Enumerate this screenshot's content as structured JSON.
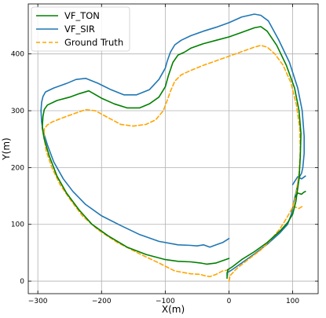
{
  "chart_data": {
    "type": "line",
    "title": "",
    "xlabel": "X(m)",
    "ylabel": "Y(m)",
    "xlim": [
      -315,
      140
    ],
    "ylim": [
      -22,
      488
    ],
    "xticks": [
      -300,
      -200,
      -100,
      0,
      100
    ],
    "yticks": [
      0,
      100,
      200,
      300,
      400
    ],
    "xtick_labels": [
      "−300",
      "−200",
      "−100",
      "0",
      "100"
    ],
    "ytick_labels": [
      "0",
      "100",
      "200",
      "300",
      "400"
    ],
    "grid": true,
    "legend_position": "top-left",
    "series": [
      {
        "name": "VF_TON",
        "color": "#008000",
        "style": "solid",
        "points": [
          [
            -3,
            5
          ],
          [
            -2,
            20
          ],
          [
            5,
            25
          ],
          [
            20,
            38
          ],
          [
            40,
            52
          ],
          [
            60,
            68
          ],
          [
            80,
            88
          ],
          [
            92,
            103
          ],
          [
            100,
            118
          ],
          [
            105,
            140
          ],
          [
            110,
            180
          ],
          [
            112,
            220
          ],
          [
            113,
            260
          ],
          [
            110,
            300
          ],
          [
            103,
            340
          ],
          [
            90,
            380
          ],
          [
            75,
            415
          ],
          [
            60,
            440
          ],
          [
            50,
            448
          ],
          [
            40,
            446
          ],
          [
            20,
            438
          ],
          [
            0,
            430
          ],
          [
            -20,
            424
          ],
          [
            -40,
            418
          ],
          [
            -60,
            410
          ],
          [
            -70,
            403
          ],
          [
            -80,
            398
          ],
          [
            -88,
            385
          ],
          [
            -95,
            362
          ],
          [
            -100,
            342
          ],
          [
            -110,
            324
          ],
          [
            -125,
            312
          ],
          [
            -140,
            305
          ],
          [
            -160,
            305
          ],
          [
            -180,
            312
          ],
          [
            -200,
            322
          ],
          [
            -220,
            335
          ],
          [
            -235,
            330
          ],
          [
            -250,
            324
          ],
          [
            -270,
            318
          ],
          [
            -285,
            310
          ],
          [
            -290,
            302
          ],
          [
            -292,
            290
          ],
          [
            -293,
            270
          ],
          [
            -290,
            250
          ],
          [
            -282,
            220
          ],
          [
            -270,
            185
          ],
          [
            -255,
            155
          ],
          [
            -235,
            125
          ],
          [
            -215,
            100
          ],
          [
            -190,
            80
          ],
          [
            -160,
            60
          ],
          [
            -130,
            47
          ],
          [
            -100,
            38
          ],
          [
            -80,
            35
          ],
          [
            -60,
            34
          ],
          [
            -45,
            32
          ],
          [
            -35,
            30
          ],
          [
            -20,
            32
          ],
          [
            0,
            40
          ]
        ]
      },
      {
        "name": "VF_TON",
        "color": "#008000",
        "style": "solid",
        "points": [
          [
            104,
            148
          ],
          [
            108,
            155
          ],
          [
            114,
            153
          ],
          [
            117,
            156
          ],
          [
            120,
            158
          ]
        ]
      },
      {
        "name": "VF_SIR",
        "color": "#1f77b4",
        "style": "solid",
        "points": [
          [
            -3,
            10
          ],
          [
            -3,
            15
          ],
          [
            2,
            18
          ],
          [
            20,
            32
          ],
          [
            40,
            48
          ],
          [
            60,
            65
          ],
          [
            80,
            85
          ],
          [
            92,
            100
          ],
          [
            98,
            118
          ],
          [
            102,
            140
          ],
          [
            106,
            160
          ],
          [
            110,
            182
          ],
          [
            114,
            190
          ],
          [
            116,
            200
          ],
          [
            118,
            225
          ],
          [
            118,
            255
          ],
          [
            115,
            300
          ],
          [
            108,
            340
          ],
          [
            95,
            385
          ],
          [
            78,
            425
          ],
          [
            62,
            458
          ],
          [
            50,
            468
          ],
          [
            40,
            470
          ],
          [
            20,
            465
          ],
          [
            0,
            455
          ],
          [
            -20,
            447
          ],
          [
            -40,
            440
          ],
          [
            -60,
            432
          ],
          [
            -75,
            424
          ],
          [
            -85,
            416
          ],
          [
            -92,
            403
          ],
          [
            -97,
            387
          ],
          [
            -100,
            375
          ],
          [
            -110,
            355
          ],
          [
            -125,
            337
          ],
          [
            -145,
            328
          ],
          [
            -165,
            328
          ],
          [
            -185,
            337
          ],
          [
            -205,
            348
          ],
          [
            -225,
            357
          ],
          [
            -240,
            355
          ],
          [
            -255,
            348
          ],
          [
            -275,
            340
          ],
          [
            -288,
            333
          ],
          [
            -292,
            325
          ],
          [
            -294,
            315
          ],
          [
            -295,
            300
          ],
          [
            -294,
            280
          ],
          [
            -292,
            265
          ],
          [
            -285,
            240
          ],
          [
            -275,
            210
          ],
          [
            -260,
            180
          ],
          [
            -245,
            158
          ],
          [
            -225,
            135
          ],
          [
            -200,
            115
          ],
          [
            -170,
            98
          ],
          [
            -140,
            82
          ],
          [
            -110,
            70
          ],
          [
            -80,
            64
          ],
          [
            -60,
            63
          ],
          [
            -50,
            62
          ],
          [
            -40,
            64
          ],
          [
            -30,
            60
          ],
          [
            -20,
            64
          ],
          [
            -10,
            68
          ],
          [
            0,
            75
          ]
        ]
      },
      {
        "name": "VF_SIR",
        "color": "#1f77b4",
        "style": "solid",
        "points": [
          [
            100,
            170
          ],
          [
            108,
            184
          ],
          [
            114,
            180
          ],
          [
            120,
            185
          ]
        ]
      },
      {
        "name": "Ground Truth",
        "color": "#ffa500",
        "style": "dashed",
        "points": [
          [
            0,
            0
          ],
          [
            2,
            10
          ],
          [
            12,
            22
          ],
          [
            30,
            38
          ],
          [
            50,
            55
          ],
          [
            65,
            72
          ],
          [
            80,
            92
          ],
          [
            90,
            110
          ],
          [
            100,
            130
          ],
          [
            105,
            150
          ],
          [
            110,
            190
          ],
          [
            112,
            230
          ],
          [
            111,
            270
          ],
          [
            106,
            310
          ],
          [
            97,
            350
          ],
          [
            85,
            380
          ],
          [
            72,
            400
          ],
          [
            60,
            412
          ],
          [
            50,
            415
          ],
          [
            40,
            412
          ],
          [
            20,
            404
          ],
          [
            0,
            396
          ],
          [
            -20,
            388
          ],
          [
            -40,
            380
          ],
          [
            -60,
            371
          ],
          [
            -75,
            363
          ],
          [
            -85,
            352
          ],
          [
            -92,
            334
          ],
          [
            -98,
            315
          ],
          [
            -103,
            300
          ],
          [
            -115,
            284
          ],
          [
            -130,
            276
          ],
          [
            -150,
            273
          ],
          [
            -170,
            276
          ],
          [
            -190,
            288
          ],
          [
            -210,
            300
          ],
          [
            -225,
            302
          ],
          [
            -240,
            296
          ],
          [
            -260,
            288
          ],
          [
            -278,
            280
          ],
          [
            -285,
            275
          ],
          [
            -290,
            268
          ],
          [
            -290,
            252
          ],
          [
            -287,
            230
          ],
          [
            -278,
            200
          ],
          [
            -265,
            170
          ],
          [
            -250,
            145
          ],
          [
            -230,
            115
          ],
          [
            -205,
            90
          ],
          [
            -175,
            68
          ],
          [
            -140,
            48
          ],
          [
            -110,
            32
          ],
          [
            -85,
            18
          ],
          [
            -60,
            13
          ],
          [
            -45,
            12
          ],
          [
            -40,
            10
          ],
          [
            -30,
            8
          ],
          [
            -20,
            12
          ],
          [
            -10,
            18
          ],
          [
            0,
            20
          ]
        ]
      },
      {
        "name": "Ground Truth",
        "color": "#ffa500",
        "style": "dashed",
        "points": [
          [
            100,
            132
          ],
          [
            110,
            128
          ],
          [
            117,
            133
          ]
        ]
      }
    ]
  }
}
